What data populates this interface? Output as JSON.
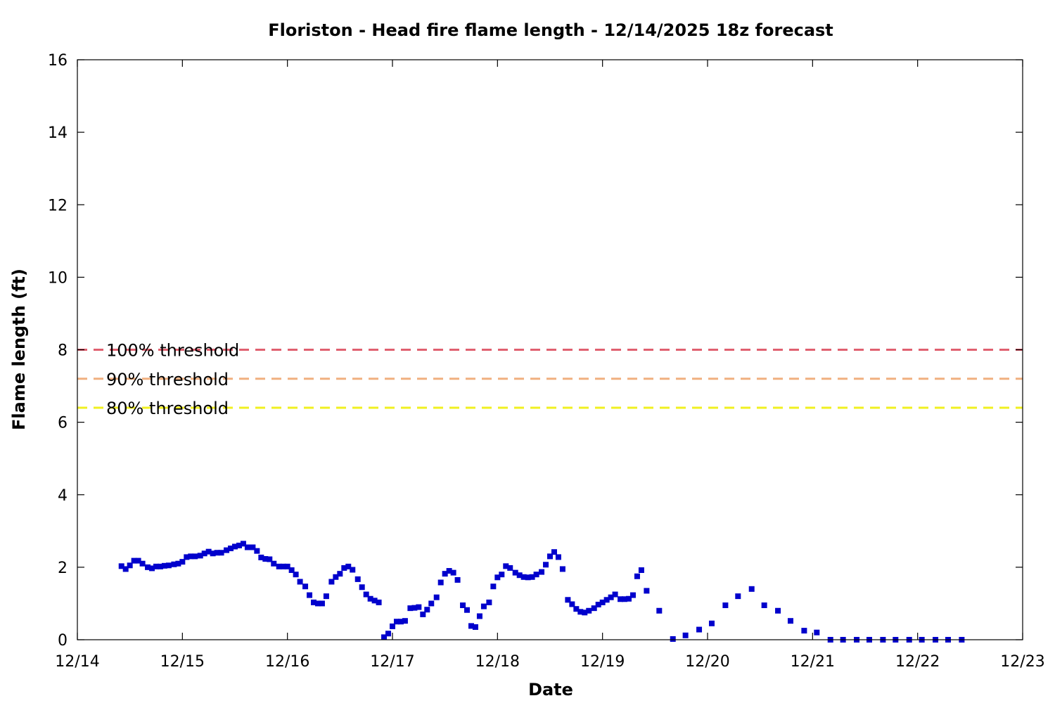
{
  "chart_data": {
    "type": "scatter",
    "title": "Floriston - Head fire flame length - 12/14/2025 18z forecast",
    "xlabel": "Date",
    "ylabel": "Flame length (ft)",
    "x_unit": "days since 12/14 00:00",
    "xlim": [
      0,
      9
    ],
    "ylim": [
      0,
      16
    ],
    "x_tick_labels": [
      "12/14",
      "12/15",
      "12/16",
      "12/17",
      "12/18",
      "12/19",
      "12/20",
      "12/21",
      "12/22",
      "12/23"
    ],
    "y_ticks": [
      0,
      2,
      4,
      6,
      8,
      10,
      12,
      14,
      16
    ],
    "grid": false,
    "series": [
      {
        "name": "",
        "color": "#0000cc",
        "marker": "square",
        "x": [
          0.42,
          0.46,
          0.5,
          0.54,
          0.58,
          0.62,
          0.67,
          0.71,
          0.75,
          0.79,
          0.83,
          0.87,
          0.92,
          0.96,
          1.0,
          1.04,
          1.08,
          1.12,
          1.17,
          1.21,
          1.25,
          1.29,
          1.33,
          1.37,
          1.42,
          1.46,
          1.5,
          1.54,
          1.58,
          1.62,
          1.67,
          1.71,
          1.75,
          1.79,
          1.83,
          1.87,
          1.92,
          1.96,
          2.0,
          2.04,
          2.08,
          2.12,
          2.17,
          2.21,
          2.25,
          2.29,
          2.33,
          2.37,
          2.42,
          2.46,
          2.5,
          2.54,
          2.58,
          2.62,
          2.67,
          2.71,
          2.75,
          2.79,
          2.83,
          2.87,
          2.92,
          2.96,
          3.0,
          3.04,
          3.08,
          3.12,
          3.17,
          3.21,
          3.25,
          3.29,
          3.33,
          3.37,
          3.42,
          3.46,
          3.5,
          3.54,
          3.58,
          3.62,
          3.67,
          3.71,
          3.75,
          3.79,
          3.83,
          3.87,
          3.92,
          3.96,
          4.0,
          4.04,
          4.08,
          4.12,
          4.17,
          4.21,
          4.25,
          4.29,
          4.33,
          4.37,
          4.42,
          4.46,
          4.5,
          4.54,
          4.58,
          4.62,
          4.67,
          4.71,
          4.75,
          4.79,
          4.83,
          4.87,
          4.92,
          4.96,
          5.0,
          5.04,
          5.08,
          5.12,
          5.17,
          5.21,
          5.25,
          5.29,
          5.33,
          5.37,
          5.42,
          5.54,
          5.67,
          5.79,
          5.92,
          6.04,
          6.17,
          6.29,
          6.42,
          6.54,
          6.67,
          6.79,
          6.92,
          7.04,
          7.17,
          7.29,
          7.42,
          7.54,
          7.67,
          7.79,
          7.92,
          8.04,
          8.17,
          8.29,
          8.42
        ],
        "y": [
          2.03,
          1.95,
          2.05,
          2.18,
          2.18,
          2.1,
          2.0,
          1.97,
          2.02,
          2.02,
          2.04,
          2.05,
          2.08,
          2.1,
          2.15,
          2.28,
          2.3,
          2.3,
          2.32,
          2.38,
          2.43,
          2.38,
          2.4,
          2.4,
          2.47,
          2.52,
          2.57,
          2.6,
          2.65,
          2.55,
          2.55,
          2.45,
          2.27,
          2.23,
          2.22,
          2.1,
          2.02,
          2.02,
          2.02,
          1.92,
          1.8,
          1.6,
          1.47,
          1.23,
          1.03,
          1.0,
          1.0,
          1.2,
          1.6,
          1.73,
          1.82,
          1.98,
          2.02,
          1.93,
          1.67,
          1.45,
          1.25,
          1.13,
          1.08,
          1.03,
          0.07,
          0.17,
          0.37,
          0.5,
          0.5,
          0.52,
          0.87,
          0.88,
          0.9,
          0.7,
          0.83,
          1.0,
          1.17,
          1.58,
          1.82,
          1.9,
          1.85,
          1.65,
          0.95,
          0.82,
          0.38,
          0.35,
          0.65,
          0.92,
          1.03,
          1.47,
          1.72,
          1.8,
          2.03,
          1.98,
          1.85,
          1.78,
          1.73,
          1.72,
          1.73,
          1.8,
          1.87,
          2.07,
          2.3,
          2.42,
          2.28,
          1.95,
          1.1,
          0.98,
          0.85,
          0.77,
          0.75,
          0.8,
          0.87,
          0.97,
          1.03,
          1.1,
          1.17,
          1.25,
          1.12,
          1.12,
          1.13,
          1.23,
          1.75,
          1.92,
          1.35,
          0.8,
          0.02,
          0.12,
          0.28,
          0.45,
          0.95,
          1.2,
          1.4,
          0.95,
          0.8,
          0.52,
          0.25,
          0.2,
          0.0,
          0.0,
          0.0,
          0.0,
          0.0,
          0.0,
          0.0,
          0.0,
          0.0,
          0.0,
          0.0
        ]
      }
    ],
    "thresholds": [
      {
        "label": "100% threshold",
        "value": 8.0,
        "color": "#e06070"
      },
      {
        "label": "90% threshold",
        "value": 7.2,
        "color": "#f0b080"
      },
      {
        "label": "80% threshold",
        "value": 6.4,
        "color": "#f0f020"
      }
    ]
  }
}
